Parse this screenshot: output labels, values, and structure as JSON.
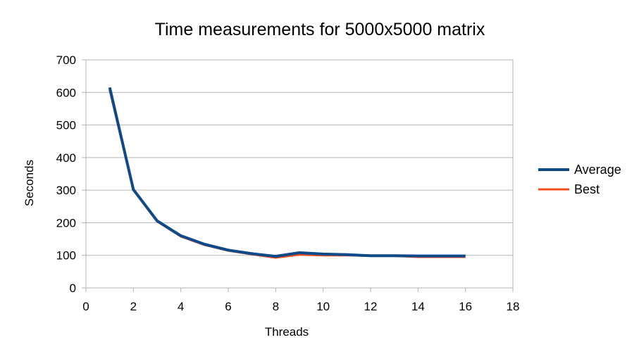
{
  "chart_data": {
    "type": "line",
    "title": "Time measurements for 5000x5000 matrix",
    "xlabel": "Threads",
    "ylabel": "Seconds",
    "xlim": [
      0,
      18
    ],
    "ylim": [
      0,
      700
    ],
    "xticks": [
      0,
      2,
      4,
      6,
      8,
      10,
      12,
      14,
      16,
      18
    ],
    "yticks": [
      0,
      100,
      200,
      300,
      400,
      500,
      600,
      700
    ],
    "grid": "horizontal",
    "legend_position": "right",
    "series": [
      {
        "name": "Average",
        "color": "#0d4a8a",
        "x": [
          1,
          2,
          3,
          4,
          5,
          6,
          7,
          8,
          9,
          10,
          11,
          12,
          13,
          14,
          15,
          16
        ],
        "y": [
          615,
          302,
          206,
          160,
          134,
          116,
          105,
          97,
          108,
          104,
          102,
          99,
          99,
          98,
          98,
          98
        ]
      },
      {
        "name": "Best",
        "color": "#f04e1c",
        "x": [
          1,
          2,
          3,
          4,
          5,
          6,
          7,
          8,
          9,
          10,
          11,
          12,
          13,
          14,
          15,
          16
        ],
        "y": [
          608,
          300,
          204,
          158,
          132,
          114,
          103,
          93,
          102,
          100,
          100,
          98,
          98,
          95,
          95,
          95
        ]
      }
    ]
  }
}
